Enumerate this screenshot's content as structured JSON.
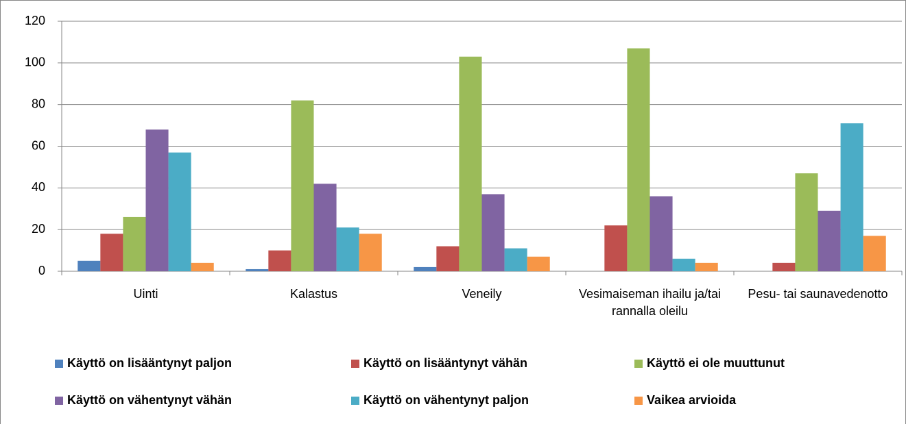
{
  "chart_data": {
    "type": "bar",
    "categories": [
      "Uinti",
      "Kalastus",
      "Veneily",
      "Vesimaiseman ihailu ja/tai rannalla oleilu",
      "Pesu- tai saunavedenotto"
    ],
    "series": [
      {
        "name": "Käyttö on lisääntynyt paljon",
        "color": "#4f81bd",
        "values": [
          5,
          1,
          2,
          0,
          0
        ]
      },
      {
        "name": "Käyttö on lisääntynyt vähän",
        "color": "#c0504d",
        "values": [
          18,
          10,
          12,
          22,
          4
        ]
      },
      {
        "name": "Käyttö ei ole muuttunut",
        "color": "#9bbb59",
        "values": [
          26,
          82,
          103,
          107,
          47
        ]
      },
      {
        "name": "Käyttö on vähentynyt vähän",
        "color": "#8064a2",
        "values": [
          68,
          42,
          37,
          36,
          29
        ]
      },
      {
        "name": "Käyttö on vähentynyt paljon",
        "color": "#4bacc6",
        "values": [
          57,
          21,
          11,
          6,
          71
        ]
      },
      {
        "name": "Vaikea arvioida",
        "color": "#f79646",
        "values": [
          4,
          18,
          7,
          4,
          17
        ]
      }
    ],
    "ylim": [
      0,
      120
    ],
    "yticks": [
      0,
      20,
      40,
      60,
      80,
      100,
      120
    ],
    "grid": true,
    "legend": "bottom"
  }
}
